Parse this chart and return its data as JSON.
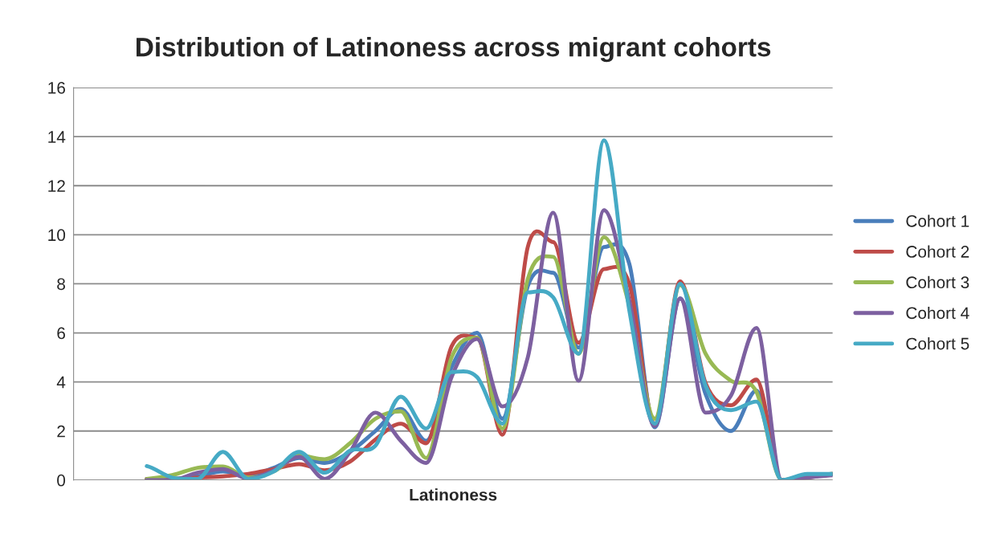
{
  "chart_data": {
    "type": "line",
    "title": "Distribution of Latinoness across migrant cohorts",
    "xlabel": "Latinoness",
    "categories": [
      null,
      null,
      null,
      null,
      null,
      null,
      null,
      null,
      null,
      null,
      null,
      null,
      null,
      null,
      null,
      null,
      null,
      null,
      null,
      null,
      null,
      null,
      null,
      null,
      null,
      null,
      null,
      null
    ],
    "series": [
      {
        "name": "Cohort 1",
        "color": "#4a7ebb",
        "values": [
          0.05,
          0.05,
          0.15,
          0.35,
          0.2,
          0.5,
          0.9,
          0.7,
          1.15,
          2.0,
          2.9,
          1.6,
          4.6,
          6.0,
          2.5,
          7.9,
          8.45,
          5.4,
          9.5,
          8.8,
          2.15,
          7.4,
          3.5,
          2.0,
          3.65,
          0,
          0.15,
          0.25
        ]
      },
      {
        "name": "Cohort 2",
        "color": "#be4b48",
        "values": [
          0.05,
          0.05,
          0.1,
          0.15,
          0.25,
          0.45,
          0.65,
          0.4,
          0.75,
          1.65,
          2.3,
          1.5,
          5.45,
          5.8,
          1.85,
          9.5,
          9.7,
          5.6,
          8.6,
          8.0,
          2.3,
          8.1,
          3.95,
          3.05,
          4.1,
          0,
          0.1,
          0.25
        ]
      },
      {
        "name": "Cohort 3",
        "color": "#98b954",
        "values": [
          0.05,
          0.2,
          0.5,
          0.55,
          0.1,
          0.35,
          1.0,
          0.85,
          1.5,
          2.5,
          2.8,
          0.9,
          5.0,
          5.8,
          2.1,
          8.2,
          9.1,
          5.15,
          9.9,
          7.1,
          2.5,
          7.95,
          5.15,
          4.05,
          3.6,
          0,
          0.2,
          0.25
        ]
      },
      {
        "name": "Cohort 4",
        "color": "#7d60a0",
        "values": [
          0,
          0,
          0.3,
          0.45,
          0.05,
          0.4,
          0.95,
          0.05,
          1.15,
          2.75,
          1.6,
          0.7,
          4.2,
          5.75,
          3.0,
          5.0,
          10.9,
          4.05,
          11.0,
          7.3,
          2.2,
          7.4,
          2.75,
          3.45,
          6.2,
          0,
          0.1,
          0.2
        ]
      },
      {
        "name": "Cohort 5",
        "color": "#46aac5",
        "values": [
          0.57,
          0.1,
          0.05,
          1.15,
          0.05,
          0.35,
          1.15,
          0.3,
          1.2,
          1.4,
          3.4,
          2.1,
          4.4,
          4.2,
          2.3,
          7.65,
          7.45,
          5.15,
          13.85,
          6.9,
          2.3,
          8.0,
          3.85,
          2.85,
          3.2,
          0,
          0.25,
          0.25
        ]
      }
    ],
    "ylim": [
      0,
      16
    ],
    "yticks": [
      0,
      2,
      4,
      6,
      8,
      10,
      12,
      14,
      16
    ],
    "grid": "y",
    "legend": "right",
    "marker": "none",
    "line_style": "solid"
  }
}
